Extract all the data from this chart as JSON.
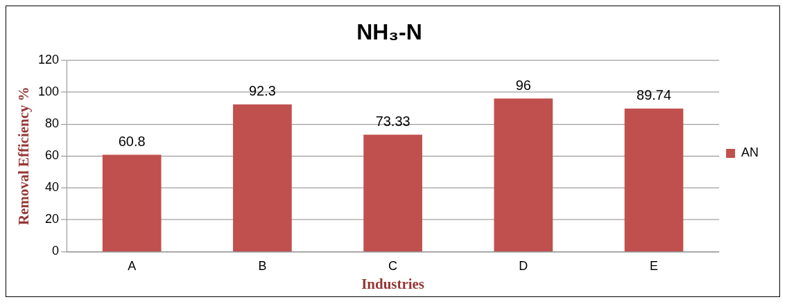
{
  "chart_data": {
    "type": "bar",
    "title": "NH₃-N",
    "xlabel": "Industries",
    "ylabel": "Removal Efficiency %",
    "categories": [
      "A",
      "B",
      "C",
      "D",
      "E"
    ],
    "series": [
      {
        "name": "AN",
        "color": "#c0504d",
        "values": [
          60.8,
          92.3,
          73.33,
          96,
          89.74
        ]
      }
    ],
    "ylim": [
      0,
      120
    ],
    "yticks": [
      0,
      20,
      40,
      60,
      80,
      100,
      120
    ],
    "grid": "y",
    "legend": "right",
    "data_labels": true
  }
}
